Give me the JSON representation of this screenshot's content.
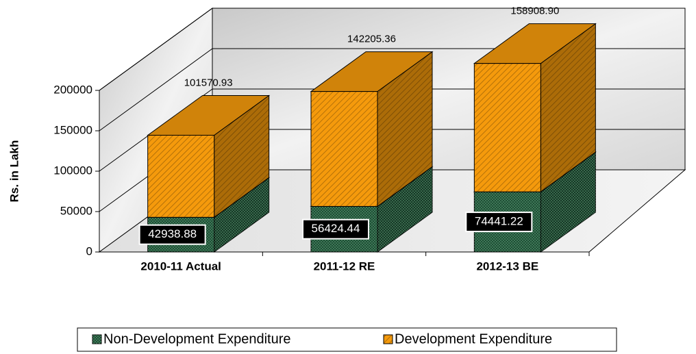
{
  "chart_data": {
    "type": "bar3d_stacked",
    "categories": [
      "2010-11 Actual",
      "2011-12 RE",
      "2012-13 BE"
    ],
    "series": [
      {
        "name": "Non-Development Expenditure",
        "color": "#1f4d35",
        "values": [
          42938.88,
          56424.44,
          74441.22
        ]
      },
      {
        "name": "Development Expenditure",
        "color": "#f59a0c",
        "values": [
          101570.93,
          142205.36,
          158908.9
        ],
        "value_labels": [
          "101570.93",
          "142205.36",
          "158908.90"
        ]
      }
    ],
    "y_label": "Rs. in Lakh",
    "ylim": [
      0,
      200000
    ],
    "yticks": [
      0,
      50000,
      100000,
      150000,
      200000
    ],
    "grid": true,
    "legend": "bottom"
  }
}
